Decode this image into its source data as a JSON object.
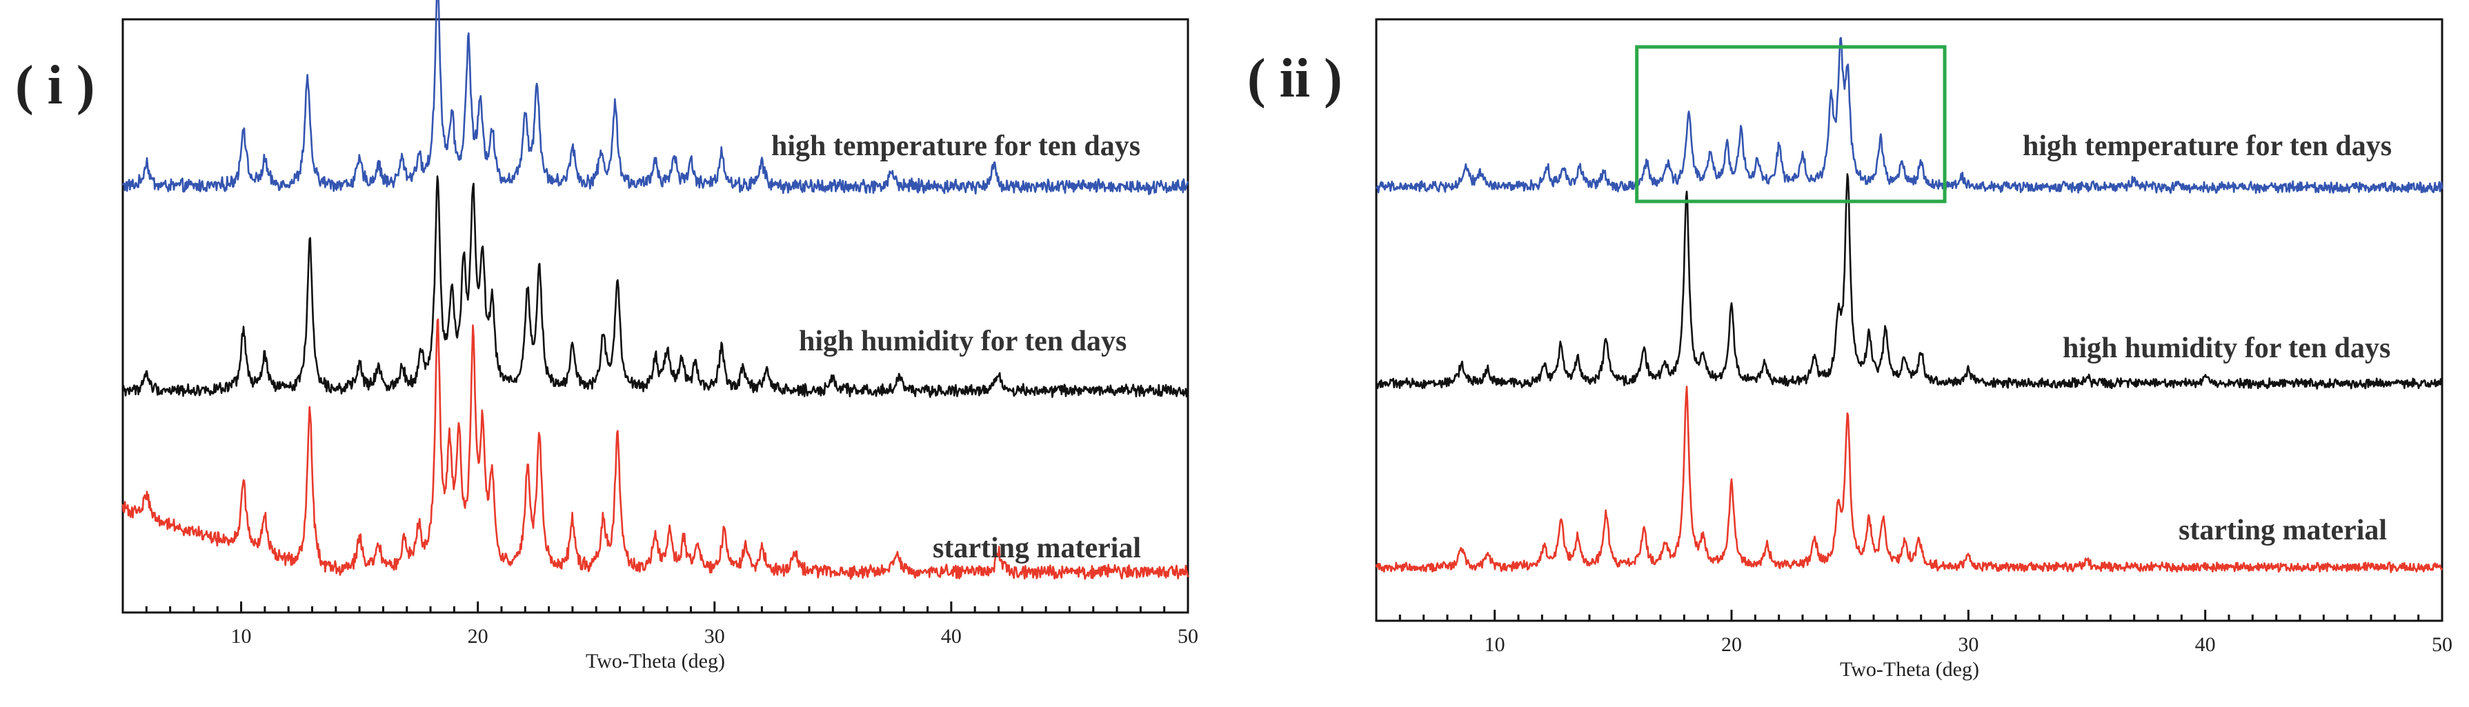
{
  "colors": {
    "blue": "#3455b0",
    "black": "#111111",
    "red": "#e8392a",
    "highlight": "#2aa84a"
  },
  "chart_data": [
    {
      "type": "line",
      "panel_label": "( i )",
      "xlabel": "Two-Theta (deg)",
      "xlim": [
        5,
        50
      ],
      "major_ticks": [
        10,
        20,
        30,
        40,
        50
      ],
      "tick_labels": [
        "10",
        "20",
        "30",
        "40",
        "50"
      ],
      "series": [
        {
          "name": "high temperature for ten days",
          "color": "blue",
          "baseline": 0.03,
          "peaks": [
            [
              6.0,
              0.05
            ],
            [
              10.1,
              0.12
            ],
            [
              11.0,
              0.05
            ],
            [
              12.8,
              0.22
            ],
            [
              15.0,
              0.05
            ],
            [
              15.8,
              0.04
            ],
            [
              16.8,
              0.05
            ],
            [
              17.5,
              0.05
            ],
            [
              18.3,
              0.4
            ],
            [
              18.9,
              0.12
            ],
            [
              19.6,
              0.28
            ],
            [
              20.1,
              0.15
            ],
            [
              20.6,
              0.1
            ],
            [
              22.0,
              0.14
            ],
            [
              22.5,
              0.2
            ],
            [
              24.0,
              0.08
            ],
            [
              25.2,
              0.06
            ],
            [
              25.8,
              0.16
            ],
            [
              27.5,
              0.05
            ],
            [
              28.3,
              0.06
            ],
            [
              29.0,
              0.05
            ],
            [
              30.3,
              0.07
            ],
            [
              32.0,
              0.05
            ],
            [
              37.5,
              0.03
            ],
            [
              41.8,
              0.04
            ]
          ]
        },
        {
          "name": "high humidity for ten days",
          "color": "black",
          "baseline": 0.03,
          "peaks": [
            [
              6.0,
              0.04
            ],
            [
              10.1,
              0.14
            ],
            [
              11.0,
              0.08
            ],
            [
              12.9,
              0.35
            ],
            [
              15.0,
              0.06
            ],
            [
              15.8,
              0.05
            ],
            [
              16.8,
              0.05
            ],
            [
              17.6,
              0.07
            ],
            [
              18.3,
              0.48
            ],
            [
              18.9,
              0.2
            ],
            [
              19.4,
              0.25
            ],
            [
              19.8,
              0.42
            ],
            [
              20.2,
              0.28
            ],
            [
              20.6,
              0.18
            ],
            [
              22.1,
              0.22
            ],
            [
              22.6,
              0.28
            ],
            [
              24.0,
              0.1
            ],
            [
              25.3,
              0.12
            ],
            [
              25.9,
              0.25
            ],
            [
              27.5,
              0.07
            ],
            [
              28.0,
              0.09
            ],
            [
              28.6,
              0.07
            ],
            [
              29.2,
              0.06
            ],
            [
              30.3,
              0.1
            ],
            [
              31.2,
              0.05
            ],
            [
              32.2,
              0.05
            ],
            [
              35.0,
              0.03
            ],
            [
              37.8,
              0.03
            ],
            [
              42.0,
              0.04
            ]
          ]
        },
        {
          "name": "starting material",
          "color": "red",
          "baseline": 0.02,
          "slope": [
            5,
            0.18,
            13,
            0.05
          ],
          "peaks": [
            [
              6.0,
              0.05
            ],
            [
              10.1,
              0.14
            ],
            [
              11.0,
              0.08
            ],
            [
              12.9,
              0.34
            ],
            [
              15.0,
              0.07
            ],
            [
              15.8,
              0.05
            ],
            [
              16.9,
              0.06
            ],
            [
              17.5,
              0.08
            ],
            [
              18.3,
              0.5
            ],
            [
              18.8,
              0.22
            ],
            [
              19.2,
              0.25
            ],
            [
              19.8,
              0.45
            ],
            [
              20.2,
              0.26
            ],
            [
              20.6,
              0.17
            ],
            [
              22.1,
              0.2
            ],
            [
              22.6,
              0.27
            ],
            [
              24.0,
              0.1
            ],
            [
              25.3,
              0.1
            ],
            [
              25.9,
              0.28
            ],
            [
              27.5,
              0.07
            ],
            [
              28.1,
              0.08
            ],
            [
              28.7,
              0.06
            ],
            [
              29.3,
              0.05
            ],
            [
              30.4,
              0.08
            ],
            [
              31.3,
              0.05
            ],
            [
              32.0,
              0.05
            ],
            [
              33.4,
              0.04
            ],
            [
              37.7,
              0.04
            ],
            [
              42.0,
              0.04
            ]
          ]
        }
      ]
    },
    {
      "type": "line",
      "panel_label": "( ii )",
      "xlabel": "Two-Theta (deg)",
      "xlim": [
        5,
        50
      ],
      "major_ticks": [
        10,
        20,
        30,
        40,
        50
      ],
      "tick_labels": [
        "10",
        "20",
        "30",
        "40",
        "50"
      ],
      "highlight_range": [
        16,
        29
      ],
      "series": [
        {
          "name": "high temperature for ten days",
          "color": "blue",
          "baseline": 0.03,
          "peaks": [
            [
              8.8,
              0.05
            ],
            [
              9.4,
              0.04
            ],
            [
              12.2,
              0.05
            ],
            [
              12.9,
              0.05
            ],
            [
              13.6,
              0.05
            ],
            [
              14.6,
              0.04
            ],
            [
              16.4,
              0.06
            ],
            [
              17.3,
              0.06
            ],
            [
              18.2,
              0.2
            ],
            [
              19.1,
              0.08
            ],
            [
              19.8,
              0.1
            ],
            [
              20.4,
              0.14
            ],
            [
              21.1,
              0.06
            ],
            [
              22.0,
              0.1
            ],
            [
              23.0,
              0.08
            ],
            [
              24.2,
              0.2
            ],
            [
              24.6,
              0.32
            ],
            [
              24.9,
              0.26
            ],
            [
              26.3,
              0.12
            ],
            [
              27.2,
              0.06
            ],
            [
              28.0,
              0.06
            ],
            [
              29.7,
              0.03
            ],
            [
              37.0,
              0.02
            ]
          ]
        },
        {
          "name": "high humidity for ten days",
          "color": "black",
          "baseline": 0.02,
          "peaks": [
            [
              8.6,
              0.06
            ],
            [
              9.7,
              0.04
            ],
            [
              12.1,
              0.05
            ],
            [
              12.8,
              0.11
            ],
            [
              13.5,
              0.07
            ],
            [
              14.7,
              0.13
            ],
            [
              16.3,
              0.1
            ],
            [
              17.2,
              0.05
            ],
            [
              18.1,
              0.55
            ],
            [
              18.8,
              0.07
            ],
            [
              20.0,
              0.22
            ],
            [
              21.4,
              0.06
            ],
            [
              23.5,
              0.07
            ],
            [
              24.5,
              0.16
            ],
            [
              24.9,
              0.6
            ],
            [
              25.8,
              0.13
            ],
            [
              26.5,
              0.15
            ],
            [
              27.3,
              0.07
            ],
            [
              28.0,
              0.09
            ],
            [
              30.0,
              0.04
            ],
            [
              35.0,
              0.02
            ],
            [
              40.0,
              0.02
            ]
          ]
        },
        {
          "name": "starting material",
          "color": "red",
          "baseline": 0.02,
          "peaks": [
            [
              8.6,
              0.06
            ],
            [
              9.7,
              0.04
            ],
            [
              12.1,
              0.06
            ],
            [
              12.8,
              0.14
            ],
            [
              13.5,
              0.08
            ],
            [
              14.7,
              0.16
            ],
            [
              16.3,
              0.11
            ],
            [
              17.2,
              0.06
            ],
            [
              18.1,
              0.52
            ],
            [
              18.8,
              0.08
            ],
            [
              20.0,
              0.25
            ],
            [
              21.5,
              0.06
            ],
            [
              23.5,
              0.08
            ],
            [
              24.5,
              0.16
            ],
            [
              24.9,
              0.44
            ],
            [
              25.8,
              0.13
            ],
            [
              26.4,
              0.13
            ],
            [
              27.3,
              0.07
            ],
            [
              27.9,
              0.08
            ],
            [
              30.0,
              0.03
            ],
            [
              35.0,
              0.02
            ]
          ]
        }
      ]
    }
  ]
}
